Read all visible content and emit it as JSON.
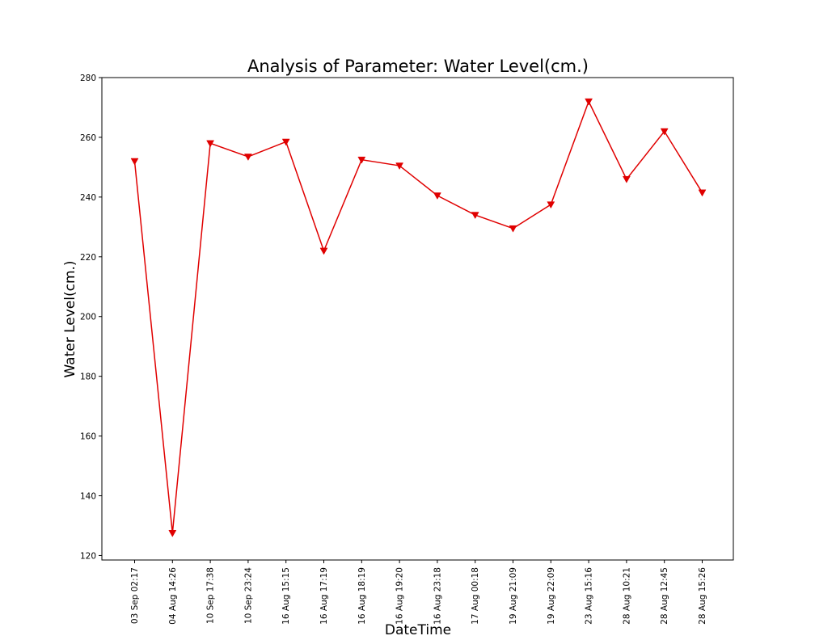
{
  "chart_data": {
    "type": "line",
    "title": "Analysis of Parameter: Water Level(cm.)",
    "xlabel": "DateTime",
    "ylabel": "Water Level(cm.)",
    "ylim": [
      118.5,
      280
    ],
    "yticks": [
      120,
      140,
      160,
      180,
      200,
      220,
      240,
      260,
      280
    ],
    "grid": false,
    "categories": [
      "03 Sep 02:17",
      "04 Aug 14:26",
      "10 Sep 17:38",
      "10 Sep 23:24",
      "16 Aug 15:15",
      "16 Aug 17:19",
      "16 Aug 18:19",
      "16 Aug 19:20",
      "16 Aug 23:18",
      "17 Aug 00:18",
      "19 Aug 21:09",
      "19 Aug 22:09",
      "23 Aug 15:16",
      "28 Aug 10:21",
      "28 Aug 12:45",
      "28 Aug 15:26"
    ],
    "series": [
      {
        "color": "#e00000",
        "marker": "triangle-down",
        "values": [
          252,
          127.5,
          258,
          253.5,
          258.5,
          222,
          252.5,
          250.5,
          240.5,
          234,
          229.5,
          237.5,
          272,
          246,
          262,
          241.5
        ]
      }
    ]
  }
}
